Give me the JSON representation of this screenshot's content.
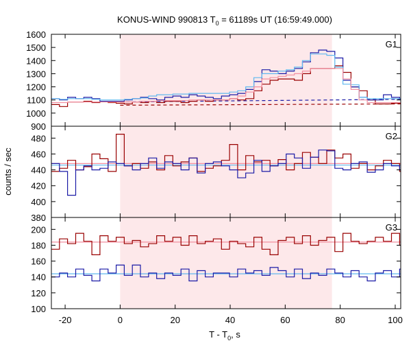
{
  "chart_data": {
    "type": "line",
    "title_main": "KONUS-WIND 990813 T",
    "title_sub": "0",
    "title_rest": " = 61189s UT (16:59:49.000)",
    "xlabel_main": "T - T",
    "xlabel_sub": "0",
    "xlabel_rest": ", s",
    "ylabel": "counts / sec",
    "xlim": [
      -25,
      102
    ],
    "xticks": [
      -20,
      0,
      20,
      40,
      60,
      80,
      100
    ],
    "shaded_interval": [
      0,
      77
    ],
    "colors": {
      "dark_red": "#990000",
      "dark_blue": "#1a1aa6",
      "light_red": "#f28fa0",
      "light_blue": "#5fb8ef",
      "shade": "#fde8ea"
    },
    "panels": [
      {
        "label": "G1",
        "ylim": [
          900,
          1600
        ],
        "yticks": [
          900,
          1000,
          1100,
          1200,
          1300,
          1400,
          1500,
          1600
        ],
        "bin_width": 2.944,
        "x_start": -25,
        "series": [
          {
            "color": "dark_red",
            "values": [
              1065,
              1050,
              1085,
              1085,
              1090,
              1080,
              1090,
              1080,
              1075,
              1070,
              1085,
              1080,
              1090,
              1080,
              1090,
              1090,
              1080,
              1090,
              1100,
              1090,
              1100,
              1100,
              1110,
              1100,
              1110,
              1170,
              1220,
              1250,
              1260,
              1260,
              1250,
              1300,
              1340,
              1340,
              1340,
              1360,
              1310,
              1200,
              1170,
              1100,
              1070,
              1070,
              1075,
              1075,
              1085,
              1075
            ]
          },
          {
            "color": "dark_blue",
            "values": [
              1110,
              1100,
              1120,
              1110,
              1120,
              1110,
              1090,
              1090,
              1090,
              1100,
              1110,
              1120,
              1110,
              1100,
              1120,
              1130,
              1120,
              1140,
              1130,
              1120,
              1110,
              1130,
              1140,
              1150,
              1180,
              1240,
              1330,
              1320,
              1300,
              1320,
              1340,
              1390,
              1460,
              1480,
              1470,
              1420,
              1250,
              1200,
              1120,
              1100,
              1100,
              1140,
              1120,
              1110,
              1100,
              1080
            ]
          },
          {
            "color": "light_blue",
            "values": [
              1110,
              1105,
              1110,
              1110,
              1110,
              1105,
              1100,
              1100,
              1100,
              1105,
              1110,
              1115,
              1130,
              1140,
              1140,
              1145,
              1145,
              1150,
              1150,
              1150,
              1150,
              1150,
              1160,
              1170,
              1200,
              1270,
              1300,
              1300,
              1320,
              1330,
              1350,
              1400,
              1450,
              1450,
              1440,
              1350,
              1220,
              1215,
              1120,
              1110,
              1110,
              1110,
              1110,
              1110,
              1105,
              1100
            ]
          },
          {
            "color": "light_red",
            "values": [
              1080,
              1080,
              1085,
              1085,
              1085,
              1085,
              1085,
              1085,
              1085,
              1085,
              1085,
              1090,
              1090,
              1095,
              1095,
              1095,
              1095,
              1100,
              1100,
              1100,
              1100,
              1100,
              1110,
              1130,
              1160,
              1200,
              1260,
              1270,
              1280,
              1290,
              1300,
              1320,
              1340,
              1340,
              1340,
              1340,
              1260,
              1180,
              1100,
              1080,
              1080,
              1080,
              1080,
              1080,
              1080,
              1080
            ]
          }
        ],
        "backgrounds": [
          {
            "color": "dark_blue",
            "from": 0,
            "to": 102,
            "y0": 1085,
            "y1": 1105,
            "style": "dashed"
          },
          {
            "color": "dark_red",
            "from": 0,
            "to": 102,
            "y0": 1060,
            "y1": 1070,
            "style": "dashed"
          }
        ]
      },
      {
        "label": "G2",
        "ylim": [
          380,
          495
        ],
        "yticks": [
          380,
          400,
          420,
          440,
          460,
          480
        ],
        "bin_width": 2.944,
        "x_start": -25,
        "series": [
          {
            "color": "dark_red",
            "values": [
              438,
              442,
              452,
              440,
              444,
              460,
              454,
              438,
              485,
              445,
              448,
              442,
              450,
              440,
              458,
              445,
              450,
              455,
              438,
              442,
              445,
              452,
              472,
              440,
              458,
              450,
              452,
              445,
              453,
              440,
              448,
              462,
              456,
              448,
              465,
              455,
              460,
              442,
              448,
              440,
              445,
              452,
              448,
              438,
              460,
              450,
              462,
              440,
              445,
              440,
              455,
              440,
              462,
              440,
              450
            ]
          },
          {
            "color": "dark_blue",
            "values": [
              448,
              438,
              408,
              440,
              445,
              440,
              442,
              450,
              448,
              445,
              440,
              448,
              455,
              442,
              450,
              448,
              440,
              455,
              436,
              448,
              450,
              445,
              440,
              430,
              436,
              452,
              438,
              445,
              448,
              460,
              455,
              442,
              456,
              465,
              464,
              442,
              440,
              448,
              450,
              437,
              440,
              448,
              445,
              440,
              455,
              445,
              448,
              440,
              452,
              440,
              448,
              452,
              440,
              450,
              448
            ]
          }
        ],
        "backgrounds": [
          {
            "color": "light_red",
            "from": -25,
            "to": 102,
            "y0": 448,
            "y1": 448
          },
          {
            "color": "light_blue",
            "from": -25,
            "to": 102,
            "y0": 446,
            "y1": 446
          }
        ]
      },
      {
        "label": "G3",
        "ylim": [
          100,
          215
        ],
        "yticks": [
          100,
          120,
          140,
          160,
          180,
          200
        ],
        "bin_width": 2.944,
        "x_start": -25,
        "series": [
          {
            "color": "dark_red",
            "values": [
              175,
              188,
              182,
              195,
              185,
              168,
              192,
              185,
              190,
              182,
              186,
              178,
              182,
              192,
              185,
              190,
              180,
              192,
              182,
              185,
              188,
              175,
              185,
              182,
              178,
              190,
              175,
              168,
              186,
              190,
              182,
              192,
              180,
              186,
              190,
              172,
              195,
              185,
              182,
              185,
              190,
              185,
              195,
              180,
              186,
              190,
              170,
              188,
              182,
              185,
              175,
              188,
              175,
              170,
              178
            ]
          },
          {
            "color": "dark_blue",
            "values": [
              140,
              145,
              140,
              150,
              142,
              135,
              150,
              145,
              155,
              142,
              155,
              140,
              145,
              138,
              145,
              142,
              150,
              135,
              148,
              140,
              145,
              145,
              140,
              150,
              145,
              148,
              142,
              152,
              148,
              140,
              150,
              138,
              145,
              142,
              150,
              145,
              140,
              148,
              140,
              135,
              145,
              148,
              140,
              150,
              135,
              148,
              150,
              138,
              155,
              145,
              150,
              140,
              138,
              145,
              142
            ]
          }
        ],
        "backgrounds": [
          {
            "color": "light_red",
            "from": -25,
            "to": 102,
            "y0": 184,
            "y1": 184
          },
          {
            "color": "light_blue",
            "from": -25,
            "to": 102,
            "y0": 144,
            "y1": 144
          }
        ]
      }
    ]
  }
}
